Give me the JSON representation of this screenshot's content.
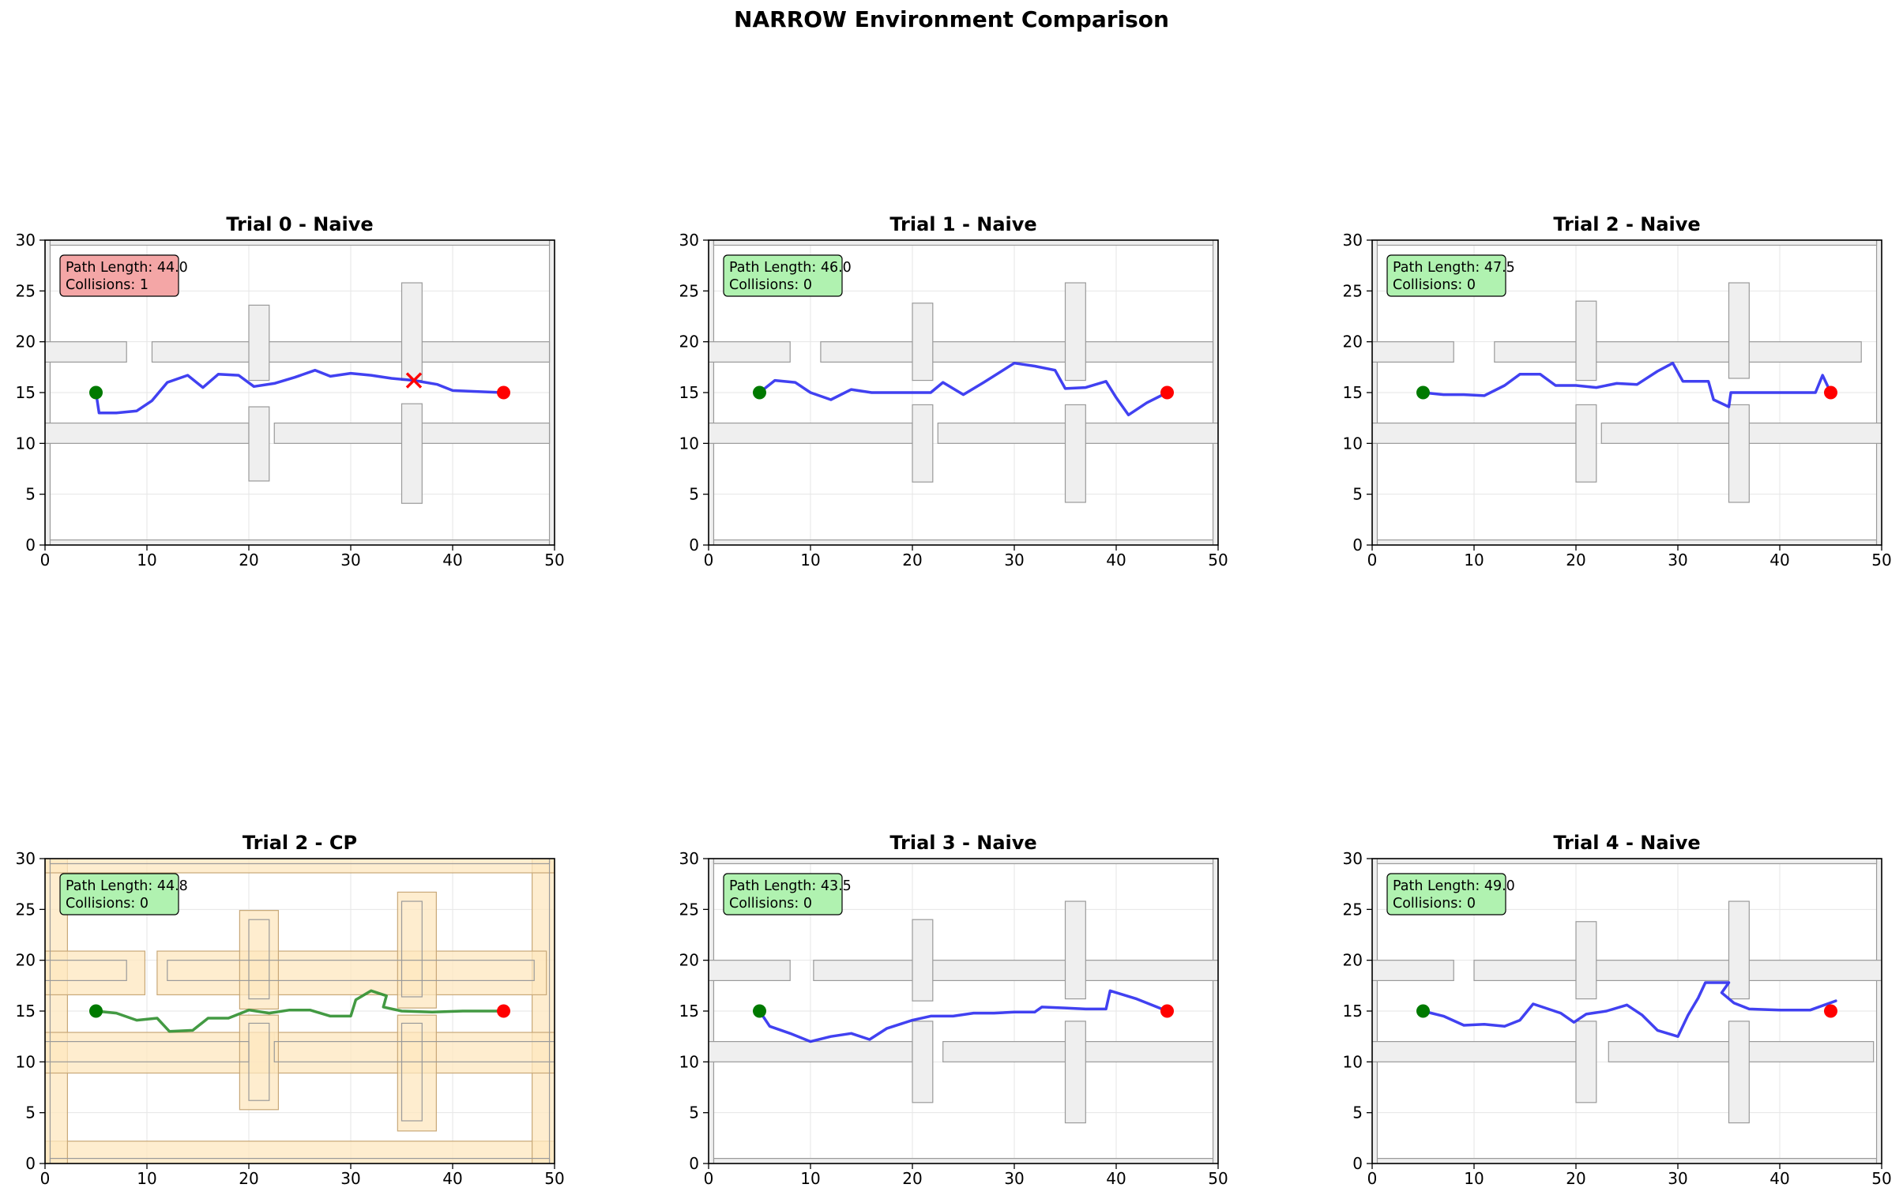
{
  "suptitle": "NARROW Environment Comparison",
  "colors": {
    "obstacle_fill": "#efefef",
    "obstacle_stroke": "#9a9a9a",
    "margin_fill": "#fde7bf",
    "margin_stroke": "#c8a878",
    "naive_path": "#2c2cf0",
    "cp_path": "#2f8f2f",
    "start": "#007a00",
    "goal": "#ff0000",
    "collision": "#ff0000",
    "info_success": "#b0f2b0",
    "info_failure": "#f4a6a6"
  },
  "chart_data": [
    {
      "type": "line",
      "title": "Trial 0 - Naive",
      "xlim": [
        0,
        50
      ],
      "ylim": [
        0,
        30
      ],
      "xticks": [
        0,
        10,
        20,
        30,
        40,
        50
      ],
      "yticks": [
        0,
        5,
        10,
        15,
        20,
        25,
        30
      ],
      "grid": true,
      "method": "naive",
      "info": {
        "line1": "Path Length: 44.0",
        "line2": "Collisions: 1",
        "success": false
      },
      "start": [
        5,
        15
      ],
      "goal": [
        45,
        15
      ],
      "collisions": [
        [
          36.2,
          16.2
        ]
      ],
      "obstacles": [
        [
          0.5,
          0,
          49.5,
          0.5
        ],
        [
          0,
          0,
          0.5,
          30
        ],
        [
          49.5,
          0,
          50,
          30
        ],
        [
          0.5,
          29.5,
          49.5,
          30
        ],
        [
          0,
          18,
          8,
          20
        ],
        [
          10.5,
          18,
          49.5,
          20
        ],
        [
          0,
          10,
          20,
          12
        ],
        [
          22.5,
          10,
          49.5,
          12
        ],
        [
          20,
          16.2,
          22,
          23.6
        ],
        [
          20,
          6.3,
          22,
          13.6
        ],
        [
          35,
          16.2,
          37,
          25.8
        ],
        [
          35,
          4.1,
          37,
          13.9
        ]
      ],
      "path": [
        [
          5,
          15
        ],
        [
          5.3,
          13
        ],
        [
          7,
          13
        ],
        [
          9,
          13.2
        ],
        [
          10.5,
          14.2
        ],
        [
          12,
          16
        ],
        [
          14,
          16.7
        ],
        [
          15.5,
          15.5
        ],
        [
          17,
          16.8
        ],
        [
          19,
          16.7
        ],
        [
          20.5,
          15.6
        ],
        [
          22.5,
          15.9
        ],
        [
          24.5,
          16.5
        ],
        [
          26.5,
          17.2
        ],
        [
          28,
          16.6
        ],
        [
          30,
          16.9
        ],
        [
          32,
          16.7
        ],
        [
          34,
          16.4
        ],
        [
          36.2,
          16.2
        ],
        [
          38.5,
          15.8
        ],
        [
          40,
          15.2
        ],
        [
          42.5,
          15.1
        ],
        [
          45,
          15
        ]
      ]
    },
    {
      "type": "line",
      "title": "Trial 1 - Naive",
      "xlim": [
        0,
        50
      ],
      "ylim": [
        0,
        30
      ],
      "xticks": [
        0,
        10,
        20,
        30,
        40,
        50
      ],
      "yticks": [
        0,
        5,
        10,
        15,
        20,
        25,
        30
      ],
      "grid": true,
      "method": "naive",
      "info": {
        "line1": "Path Length: 46.0",
        "line2": "Collisions: 0",
        "success": true
      },
      "start": [
        5,
        15
      ],
      "goal": [
        45,
        15
      ],
      "collisions": [],
      "obstacles": [
        [
          0.5,
          0,
          49.5,
          0.5
        ],
        [
          0,
          0,
          0.5,
          30
        ],
        [
          49.5,
          0,
          50,
          30
        ],
        [
          0.5,
          29.5,
          49.5,
          30
        ],
        [
          0,
          18,
          8,
          20
        ],
        [
          11,
          18,
          49.5,
          20
        ],
        [
          0,
          10,
          20,
          12
        ],
        [
          22.5,
          10,
          50,
          12
        ],
        [
          20,
          16.2,
          22,
          23.8
        ],
        [
          20,
          6.2,
          22,
          13.8
        ],
        [
          35,
          16.2,
          37,
          25.8
        ],
        [
          35,
          4.2,
          37,
          13.8
        ]
      ],
      "path": [
        [
          5,
          15
        ],
        [
          6.5,
          16.2
        ],
        [
          8.5,
          16
        ],
        [
          10,
          15
        ],
        [
          12,
          14.3
        ],
        [
          14,
          15.3
        ],
        [
          16,
          15
        ],
        [
          18,
          15
        ],
        [
          20,
          15
        ],
        [
          21.8,
          15
        ],
        [
          23,
          16
        ],
        [
          25,
          14.8
        ],
        [
          27,
          16
        ],
        [
          30,
          17.9
        ],
        [
          32,
          17.6
        ],
        [
          34,
          17.2
        ],
        [
          35,
          15.4
        ],
        [
          37,
          15.5
        ],
        [
          39,
          16.1
        ],
        [
          40,
          14.5
        ],
        [
          41.2,
          12.8
        ],
        [
          43,
          14
        ],
        [
          45,
          15
        ]
      ]
    },
    {
      "type": "line",
      "title": "Trial 2 - Naive",
      "xlim": [
        0,
        50
      ],
      "ylim": [
        0,
        30
      ],
      "xticks": [
        0,
        10,
        20,
        30,
        40,
        50
      ],
      "yticks": [
        0,
        5,
        10,
        15,
        20,
        25,
        30
      ],
      "grid": true,
      "method": "naive",
      "info": {
        "line1": "Path Length: 47.5",
        "line2": "Collisions: 0",
        "success": true
      },
      "start": [
        5,
        15
      ],
      "goal": [
        45,
        15
      ],
      "collisions": [],
      "obstacles": [
        [
          0.5,
          0,
          49.5,
          0.5
        ],
        [
          0,
          0,
          0.5,
          30
        ],
        [
          49.5,
          0,
          50,
          30
        ],
        [
          0.5,
          29.5,
          49.5,
          30
        ],
        [
          0,
          18,
          8,
          20
        ],
        [
          12,
          18,
          48,
          20
        ],
        [
          0,
          10,
          20,
          12
        ],
        [
          22.5,
          10,
          50,
          12
        ],
        [
          20,
          16.2,
          22,
          24
        ],
        [
          20,
          6.2,
          22,
          13.8
        ],
        [
          35,
          16.4,
          37,
          25.8
        ],
        [
          35,
          4.2,
          37,
          13.8
        ]
      ],
      "path": [
        [
          5,
          15
        ],
        [
          7,
          14.8
        ],
        [
          9,
          14.8
        ],
        [
          11,
          14.7
        ],
        [
          13,
          15.7
        ],
        [
          14.5,
          16.8
        ],
        [
          16.5,
          16.8
        ],
        [
          18,
          15.7
        ],
        [
          20,
          15.7
        ],
        [
          22,
          15.5
        ],
        [
          24,
          15.9
        ],
        [
          26,
          15.8
        ],
        [
          28,
          17.1
        ],
        [
          29.5,
          17.9
        ],
        [
          30.5,
          16.1
        ],
        [
          33,
          16.1
        ],
        [
          33.5,
          14.3
        ],
        [
          35,
          13.6
        ],
        [
          35.2,
          15
        ],
        [
          37,
          15
        ],
        [
          40,
          15
        ],
        [
          43.5,
          15
        ],
        [
          44.2,
          16.7
        ],
        [
          45,
          15
        ]
      ]
    },
    {
      "type": "line",
      "title": "Trial 2 - CP",
      "xlim": [
        0,
        50
      ],
      "ylim": [
        0,
        30
      ],
      "xticks": [
        0,
        10,
        20,
        30,
        40,
        50
      ],
      "yticks": [
        0,
        5,
        10,
        15,
        20,
        25,
        30
      ],
      "grid": true,
      "method": "cp",
      "info": {
        "line1": "Path Length: 44.8",
        "line2": "Collisions: 0",
        "success": true
      },
      "start": [
        5,
        15
      ],
      "goal": [
        45,
        15
      ],
      "collisions": [],
      "margins": [
        [
          0,
          0,
          50,
          2.2
        ],
        [
          0,
          0,
          2.2,
          30
        ],
        [
          47.8,
          0,
          50,
          30
        ],
        [
          0,
          28.6,
          50,
          30
        ],
        [
          0,
          16.6,
          9.8,
          20.9
        ],
        [
          11,
          16.6,
          49.2,
          20.9
        ],
        [
          0,
          8.9,
          22.5,
          12.9
        ],
        [
          22,
          8.9,
          50,
          12.9
        ],
        [
          19.1,
          15.2,
          22.9,
          24.9
        ],
        [
          19.1,
          5.3,
          22.9,
          14.6
        ],
        [
          34.6,
          15.3,
          38.4,
          26.7
        ],
        [
          34.6,
          3.2,
          38.4,
          14.6
        ]
      ],
      "obstacles": [
        [
          0.5,
          0,
          49.5,
          0.5
        ],
        [
          0,
          0,
          0.5,
          30
        ],
        [
          49.5,
          0,
          50,
          30
        ],
        [
          0.5,
          29.5,
          49.5,
          30
        ],
        [
          0,
          18,
          8,
          20
        ],
        [
          12,
          18,
          48,
          20
        ],
        [
          0,
          10,
          20,
          12
        ],
        [
          22.5,
          10,
          50,
          12
        ],
        [
          20,
          16.2,
          22,
          24
        ],
        [
          20,
          6.2,
          22,
          13.8
        ],
        [
          35,
          16.4,
          37,
          25.8
        ],
        [
          35,
          4.2,
          37,
          13.8
        ]
      ],
      "path": [
        [
          5,
          15
        ],
        [
          7,
          14.8
        ],
        [
          9,
          14.1
        ],
        [
          11,
          14.3
        ],
        [
          12.2,
          13
        ],
        [
          14.5,
          13.1
        ],
        [
          16,
          14.3
        ],
        [
          18,
          14.3
        ],
        [
          20,
          15.1
        ],
        [
          22,
          14.8
        ],
        [
          24,
          15.1
        ],
        [
          26,
          15.1
        ],
        [
          28,
          14.5
        ],
        [
          30,
          14.5
        ],
        [
          30.5,
          16.1
        ],
        [
          32,
          17
        ],
        [
          33.5,
          16.5
        ],
        [
          33.2,
          15.4
        ],
        [
          35,
          15
        ],
        [
          38,
          14.9
        ],
        [
          41,
          15
        ],
        [
          45,
          15
        ]
      ]
    },
    {
      "type": "line",
      "title": "Trial 3 - Naive",
      "xlim": [
        0,
        50
      ],
      "ylim": [
        0,
        30
      ],
      "xticks": [
        0,
        10,
        20,
        30,
        40,
        50
      ],
      "yticks": [
        0,
        5,
        10,
        15,
        20,
        25,
        30
      ],
      "grid": true,
      "method": "naive",
      "info": {
        "line1": "Path Length: 43.5",
        "line2": "Collisions: 0",
        "success": true
      },
      "start": [
        5,
        15
      ],
      "goal": [
        45,
        15
      ],
      "collisions": [],
      "obstacles": [
        [
          0.5,
          0,
          49.5,
          0.5
        ],
        [
          0,
          0,
          0.5,
          30
        ],
        [
          49.5,
          0,
          50,
          30
        ],
        [
          0.5,
          29.5,
          49.5,
          30
        ],
        [
          0,
          18,
          8,
          20
        ],
        [
          10.3,
          18,
          50,
          20
        ],
        [
          0,
          10,
          20,
          12
        ],
        [
          23,
          10,
          49.5,
          12
        ],
        [
          20,
          16,
          22,
          24
        ],
        [
          20,
          6,
          22,
          14
        ],
        [
          35,
          16.2,
          37,
          25.8
        ],
        [
          35,
          4,
          37,
          14
        ]
      ],
      "path": [
        [
          5,
          15
        ],
        [
          6,
          13.5
        ],
        [
          8,
          12.8
        ],
        [
          10,
          12
        ],
        [
          12,
          12.5
        ],
        [
          14,
          12.8
        ],
        [
          15.8,
          12.2
        ],
        [
          17.5,
          13.3
        ],
        [
          20,
          14.1
        ],
        [
          21.8,
          14.5
        ],
        [
          24,
          14.5
        ],
        [
          26,
          14.8
        ],
        [
          28,
          14.8
        ],
        [
          30,
          14.9
        ],
        [
          32,
          14.9
        ],
        [
          32.7,
          15.4
        ],
        [
          35,
          15.3
        ],
        [
          37,
          15.2
        ],
        [
          39,
          15.2
        ],
        [
          39.4,
          17
        ],
        [
          42,
          16.2
        ],
        [
          45,
          15
        ]
      ]
    },
    {
      "type": "line",
      "title": "Trial 4 - Naive",
      "xlim": [
        0,
        50
      ],
      "ylim": [
        0,
        30
      ],
      "xticks": [
        0,
        10,
        20,
        30,
        40,
        50
      ],
      "yticks": [
        0,
        5,
        10,
        15,
        20,
        25,
        30
      ],
      "grid": true,
      "method": "naive",
      "info": {
        "line1": "Path Length: 49.0",
        "line2": "Collisions: 0",
        "success": true
      },
      "start": [
        5,
        15
      ],
      "goal": [
        45,
        15
      ],
      "collisions": [],
      "obstacles": [
        [
          0.5,
          0,
          49.5,
          0.5
        ],
        [
          0,
          0,
          0.5,
          30
        ],
        [
          49.5,
          0,
          50,
          30
        ],
        [
          0.5,
          29.5,
          49.5,
          30
        ],
        [
          0,
          18,
          8,
          20
        ],
        [
          10,
          18,
          50,
          20
        ],
        [
          0,
          10,
          20,
          12
        ],
        [
          23.2,
          10,
          49.2,
          12
        ],
        [
          20,
          16.2,
          22,
          23.8
        ],
        [
          20,
          6,
          22,
          14
        ],
        [
          35,
          16.2,
          37,
          25.8
        ],
        [
          35,
          4,
          37,
          14
        ]
      ],
      "path": [
        [
          5,
          15
        ],
        [
          7,
          14.5
        ],
        [
          9,
          13.6
        ],
        [
          11,
          13.7
        ],
        [
          13,
          13.5
        ],
        [
          14.5,
          14.1
        ],
        [
          15.8,
          15.7
        ],
        [
          17,
          15.3
        ],
        [
          18.5,
          14.8
        ],
        [
          19.8,
          13.9
        ],
        [
          21,
          14.7
        ],
        [
          23,
          15
        ],
        [
          25,
          15.6
        ],
        [
          26.5,
          14.6
        ],
        [
          28,
          13.1
        ],
        [
          30,
          12.5
        ],
        [
          31,
          14.6
        ],
        [
          32,
          16.3
        ],
        [
          32.7,
          17.8
        ],
        [
          35,
          17.8
        ],
        [
          34.3,
          16.8
        ],
        [
          35.5,
          15.8
        ],
        [
          37,
          15.2
        ],
        [
          40,
          15.1
        ],
        [
          43,
          15.1
        ],
        [
          45.5,
          16
        ]
      ]
    }
  ]
}
